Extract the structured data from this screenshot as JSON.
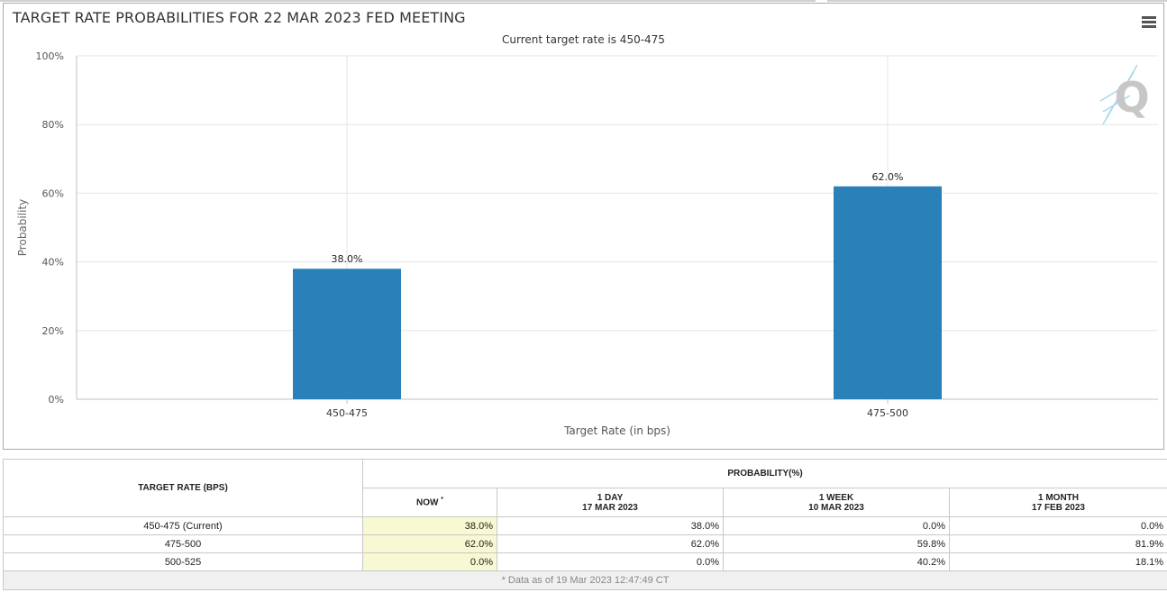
{
  "chart_title": "TARGET RATE PROBABILITIES FOR 22 MAR 2023 FED MEETING",
  "chart_subtitle": "Current target rate is 450-475",
  "colors": {
    "bar": "#2a80b9",
    "grid": "#e6e6e6",
    "axis": "#c0c0c0",
    "text": "#333333"
  },
  "chart_data": {
    "type": "bar",
    "title": "TARGET RATE PROBABILITIES FOR 22 MAR 2023 FED MEETING",
    "subtitle": "Current target rate is 450-475",
    "categories": [
      "450-475",
      "475-500"
    ],
    "values": [
      38.0,
      62.0
    ],
    "data_labels": [
      "38.0%",
      "62.0%"
    ],
    "xlabel": "Target Rate (in bps)",
    "ylabel": "Probability",
    "ylim": [
      0,
      100
    ],
    "yticks": [
      0,
      20,
      40,
      60,
      80,
      100
    ],
    "ytick_labels": [
      "0%",
      "20%",
      "40%",
      "60%",
      "80%",
      "100%"
    ],
    "grid": true
  },
  "table": {
    "header_target": "TARGET RATE (BPS)",
    "header_probability": "PROBABILITY(%)",
    "col_now": "NOW",
    "col_now_mark": "*",
    "columns": [
      {
        "line1": "1 DAY",
        "line2": "17 MAR 2023"
      },
      {
        "line1": "1 WEEK",
        "line2": "10 MAR 2023"
      },
      {
        "line1": "1 MONTH",
        "line2": "17 FEB 2023"
      }
    ],
    "rows": [
      {
        "rate": "450-475 (Current)",
        "now": "38.0%",
        "day": "38.0%",
        "week": "0.0%",
        "month": "0.0%"
      },
      {
        "rate": "475-500",
        "now": "62.0%",
        "day": "62.0%",
        "week": "59.8%",
        "month": "81.9%"
      },
      {
        "rate": "500-525",
        "now": "0.0%",
        "day": "0.0%",
        "week": "40.2%",
        "month": "18.1%"
      }
    ],
    "footnote": "* Data as of 19 Mar 2023 12:47:49 CT"
  }
}
